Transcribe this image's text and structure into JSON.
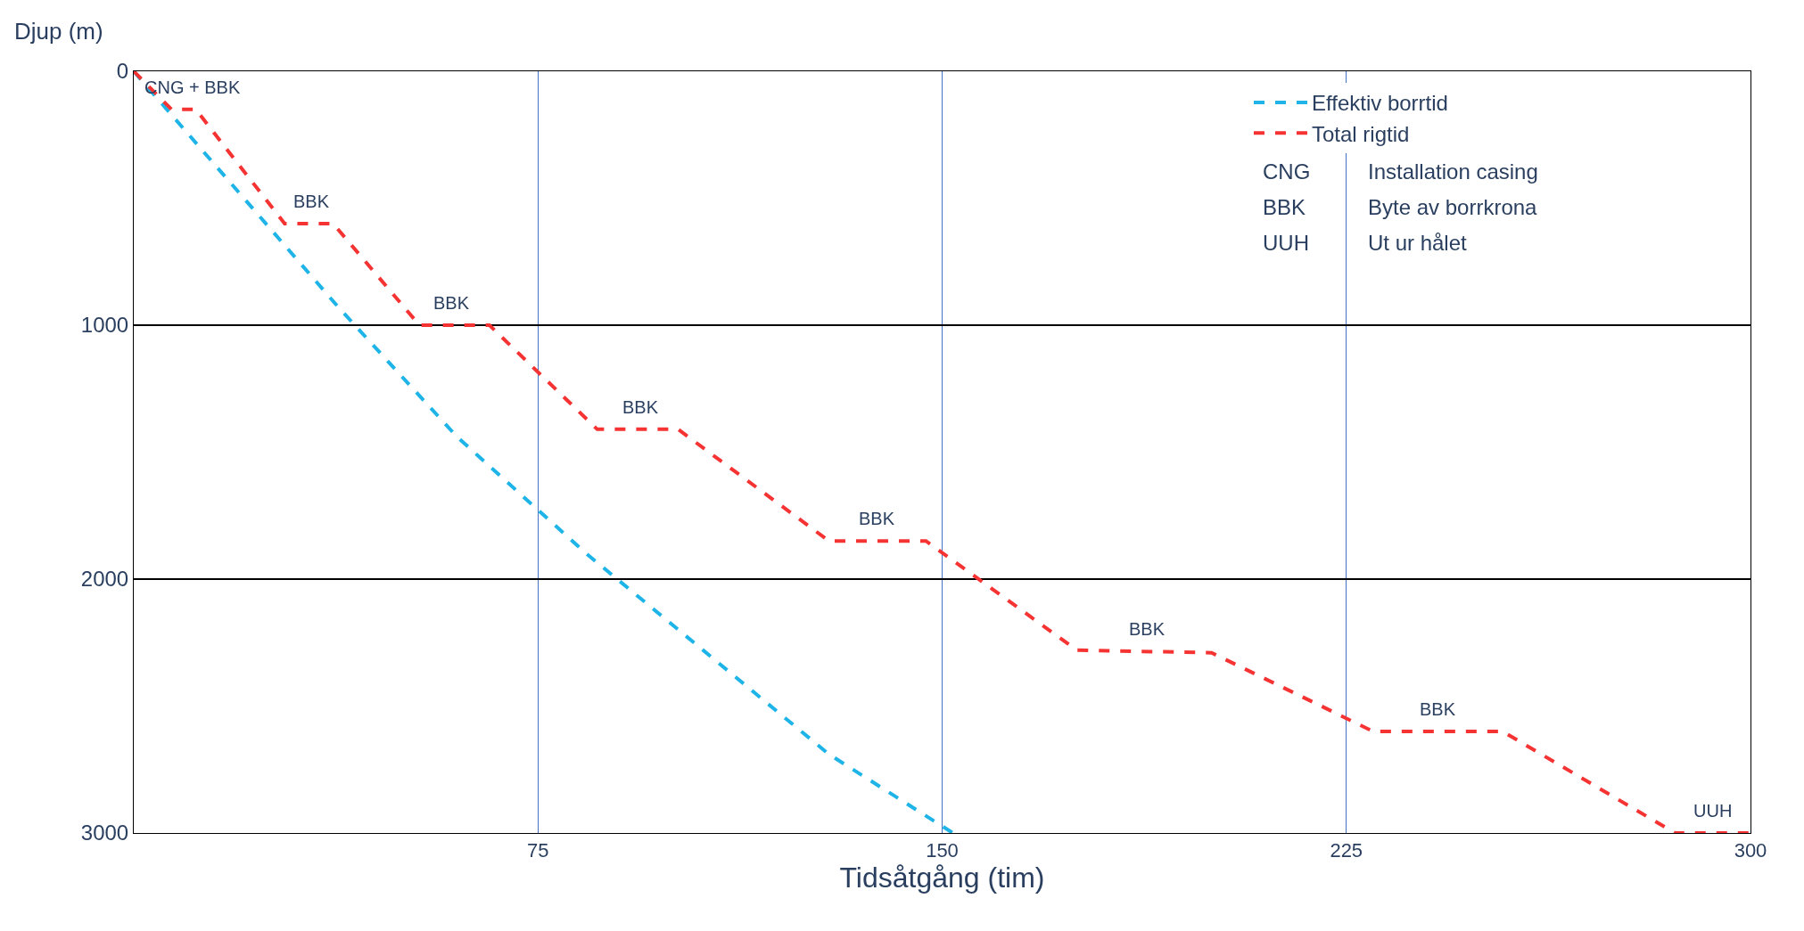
{
  "chart_data": {
    "type": "line",
    "xlabel": "Tidsåtgång (tim)",
    "ylabel": "Djup (m)",
    "series": [
      {
        "name": "Effektiv borrtid",
        "color": "#1eb4e8",
        "x": [
          0,
          38,
          60,
          84,
          129,
          152
        ],
        "values": [
          0,
          930,
          1440,
          1900,
          2690,
          3000
        ]
      },
      {
        "name": "Total rigtid",
        "color": "#f53333",
        "x": [
          0,
          7,
          11.5,
          28,
          37,
          53,
          66,
          86,
          101,
          129,
          147,
          175,
          200,
          230,
          254,
          286,
          300
        ],
        "values": [
          0,
          150,
          150,
          600,
          600,
          1000,
          1000,
          1410,
          1410,
          1850,
          1850,
          2280,
          2290,
          2600,
          2600,
          3000,
          3000
        ]
      }
    ],
    "xlim": [
      0,
      300
    ],
    "xticks": [
      75,
      150,
      225,
      300
    ],
    "ylim": [
      3000,
      0
    ],
    "yticks": [
      0,
      1000,
      2000,
      3000
    ],
    "grid": true,
    "legend": "top right",
    "line_style": "dashed",
    "marker": "none",
    "annotations": [
      {
        "text": "CNG + BBK",
        "x": 11,
        "y": 150
      },
      {
        "text": "BBK",
        "x": 33,
        "y": 600
      },
      {
        "text": "BBK",
        "x": 59,
        "y": 1000
      },
      {
        "text": "BBK",
        "x": 94,
        "y": 1410
      },
      {
        "text": "BBK",
        "x": 138,
        "y": 1850
      },
      {
        "text": "BBK",
        "x": 188,
        "y": 2285
      },
      {
        "text": "BBK",
        "x": 242,
        "y": 2600
      },
      {
        "text": "UUH",
        "x": 293,
        "y": 3000
      },
      "CNG",
      "Installation casing",
      "BBK",
      "Byte av borrkrona",
      "UUH",
      "Ut ur hålet"
    ]
  }
}
